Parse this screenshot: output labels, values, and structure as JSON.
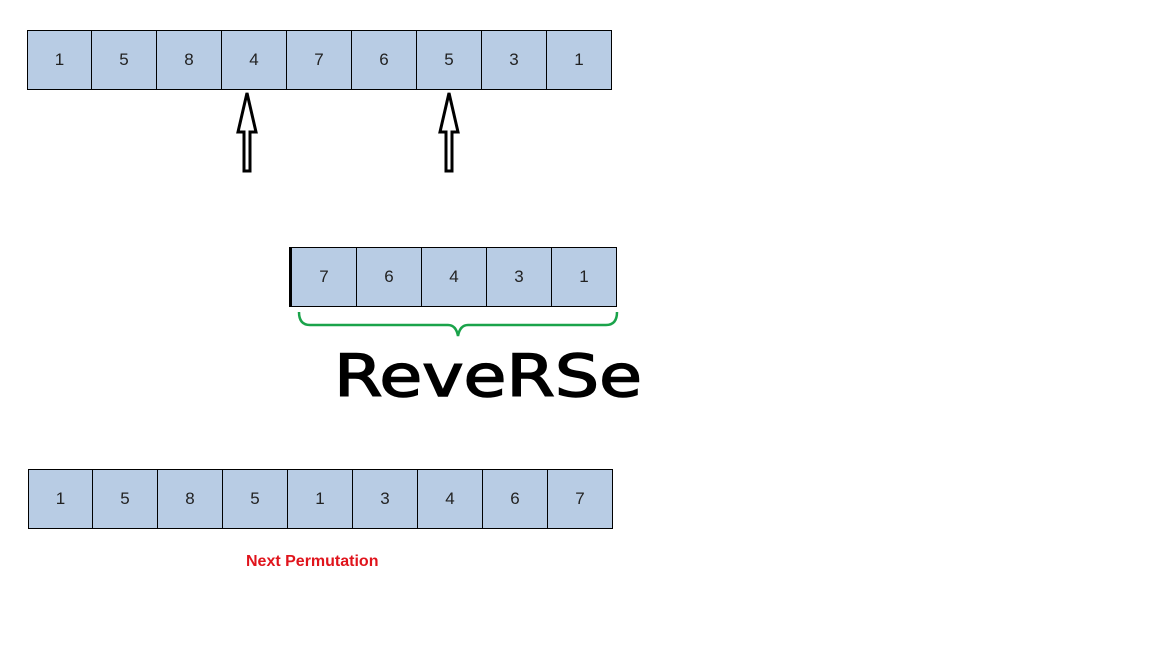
{
  "original_sequence": [
    "1",
    "5",
    "8",
    "4",
    "7",
    "6",
    "5",
    "3",
    "1"
  ],
  "reversed_suffix": [
    "7",
    "6",
    "4",
    "3",
    "1"
  ],
  "result_sequence": [
    "1",
    "5",
    "8",
    "5",
    "1",
    "3",
    "4",
    "6",
    "7"
  ],
  "reverse_label": "ReveRSe",
  "caption": "Next Permutation",
  "colors": {
    "cell_fill": "#b8cce4",
    "brace": "#1aa34a",
    "caption": "#e0141c"
  }
}
